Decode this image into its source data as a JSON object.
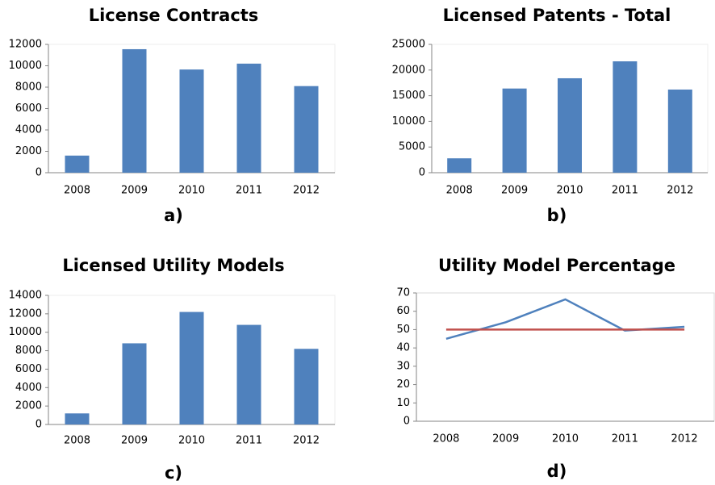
{
  "chart_data": [
    {
      "type": "bar",
      "title": "License Contracts",
      "caption": "a)",
      "categories": [
        "2008",
        "2009",
        "2010",
        "2011",
        "2012"
      ],
      "values": [
        1600,
        11550,
        9650,
        10200,
        8100
      ],
      "color": "#4f81bd",
      "ylim": [
        0,
        12000
      ],
      "yticks": [
        0,
        2000,
        4000,
        6000,
        8000,
        10000,
        12000
      ]
    },
    {
      "type": "bar",
      "title": "Licensed Patents - Total",
      "caption": "b)",
      "categories": [
        "2008",
        "2009",
        "2010",
        "2011",
        "2012"
      ],
      "values": [
        2800,
        16400,
        18400,
        21700,
        16200
      ],
      "color": "#4f81bd",
      "ylim": [
        0,
        25000
      ],
      "yticks": [
        0,
        5000,
        10000,
        15000,
        20000,
        25000
      ]
    },
    {
      "type": "bar",
      "title": "Licensed Utility Models",
      "caption": "c)",
      "categories": [
        "2008",
        "2009",
        "2010",
        "2011",
        "2012"
      ],
      "values": [
        1200,
        8800,
        12200,
        10800,
        8200
      ],
      "color": "#4f81bd",
      "ylim": [
        0,
        14000
      ],
      "yticks": [
        0,
        2000,
        4000,
        6000,
        8000,
        10000,
        12000,
        14000
      ]
    },
    {
      "type": "line",
      "title": "Utility Model Percentage",
      "caption": "d)",
      "categories": [
        "2008",
        "2009",
        "2010",
        "2011",
        "2012"
      ],
      "series": [
        {
          "color": "#4f81bd",
          "values": [
            45,
            54,
            66.5,
            49.5,
            51.5
          ]
        },
        {
          "color": "#c0504d",
          "values": [
            50,
            50,
            50,
            50,
            50
          ]
        }
      ],
      "ylim": [
        0,
        70
      ],
      "yticks": [
        0,
        10,
        20,
        30,
        40,
        50,
        60,
        70
      ]
    }
  ]
}
